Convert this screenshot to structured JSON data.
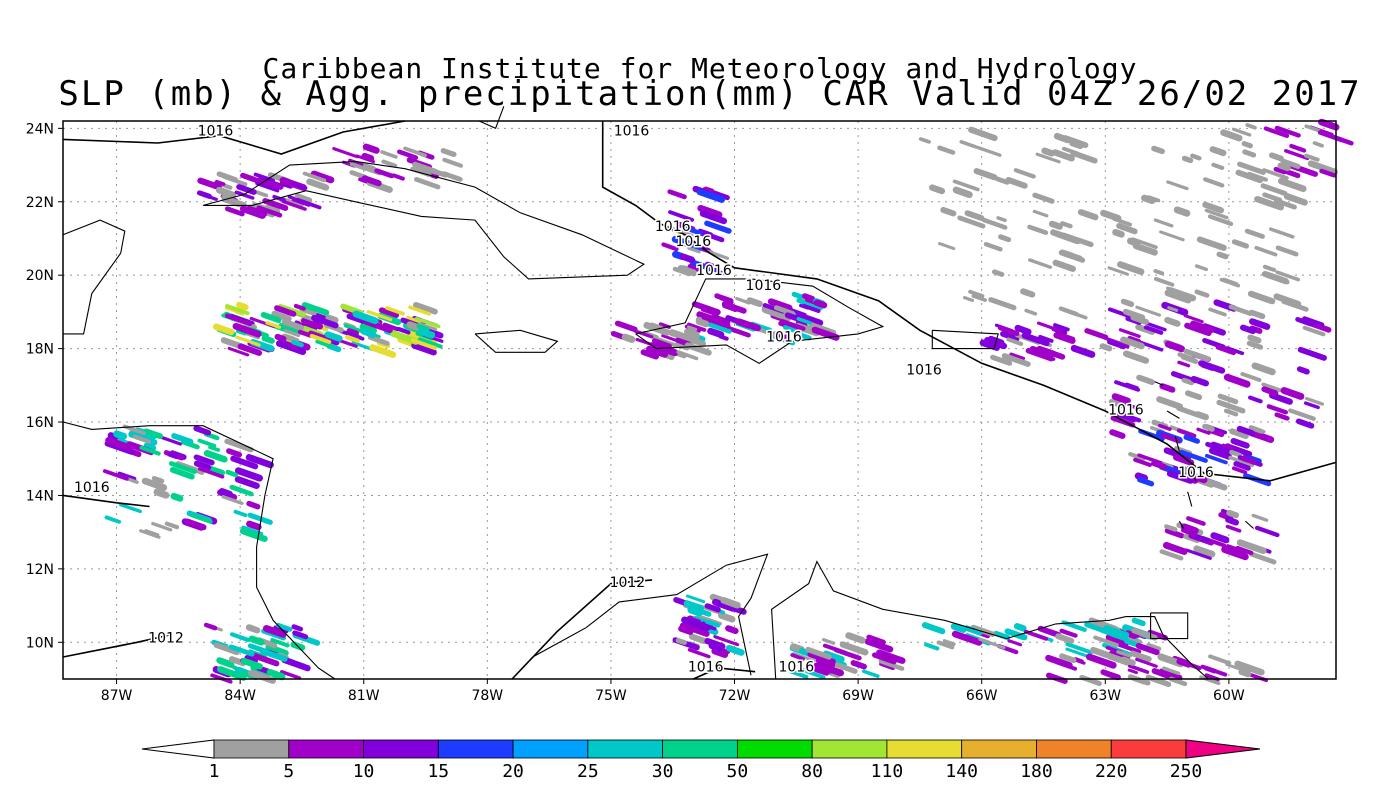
{
  "title_line1": "Caribbean Institute for Meteorology and Hydrology",
  "title_line2": "SLP (mb) & Agg. precipitation(mm) CAR Valid 04Z 26/02 2017",
  "axes": {
    "lat_labels": [
      "24N",
      "22N",
      "20N",
      "18N",
      "16N",
      "14N",
      "12N",
      "10N"
    ],
    "lat_values": [
      24,
      22,
      20,
      18,
      16,
      14,
      12,
      10
    ],
    "lon_labels": [
      "87W",
      "84W",
      "81W",
      "78W",
      "75W",
      "72W",
      "69W",
      "66W",
      "63W",
      "60W"
    ],
    "lon_values": [
      -87,
      -84,
      -81,
      -78,
      -75,
      -72,
      -69,
      -66,
      -63,
      -60
    ],
    "lat_range": [
      9,
      24.2
    ],
    "lon_range": [
      -88.3,
      -57.4
    ],
    "grid": "dotted"
  },
  "isobar_labels": [
    {
      "text": "1016",
      "lon": -84.6,
      "lat": 23.8
    },
    {
      "text": "1016",
      "lon": -74.5,
      "lat": 23.8
    },
    {
      "text": "1016",
      "lon": -73.5,
      "lat": 21.2
    },
    {
      "text": "1016",
      "lon": -73.0,
      "lat": 20.8
    },
    {
      "text": "1016",
      "lon": -72.5,
      "lat": 20.0
    },
    {
      "text": "1016",
      "lon": -71.3,
      "lat": 19.6
    },
    {
      "text": "1016",
      "lon": -70.8,
      "lat": 18.2
    },
    {
      "text": "1016",
      "lon": -67.4,
      "lat": 17.3
    },
    {
      "text": "1016",
      "lon": -62.5,
      "lat": 16.2
    },
    {
      "text": "1016",
      "lon": -87.6,
      "lat": 14.1
    },
    {
      "text": "1016",
      "lon": -60.8,
      "lat": 14.5
    },
    {
      "text": "1012",
      "lon": -85.8,
      "lat": 10.0
    },
    {
      "text": "1012",
      "lon": -74.6,
      "lat": 11.5
    },
    {
      "text": "1016",
      "lon": -72.7,
      "lat": 9.2
    },
    {
      "text": "1016",
      "lon": -70.5,
      "lat": 9.2
    }
  ],
  "colorbar": {
    "labels": [
      "1",
      "5",
      "10",
      "15",
      "20",
      "25",
      "30",
      "50",
      "80",
      "110",
      "140",
      "180",
      "220",
      "250"
    ],
    "colors": [
      "#a0a0a0",
      "#a000c8",
      "#8200dc",
      "#1e3cff",
      "#00a0ff",
      "#00c8c8",
      "#00d28c",
      "#00dc00",
      "#a0e632",
      "#e6dc32",
      "#e6af2d",
      "#f08228",
      "#fa3c3c",
      "#f00082"
    ],
    "low_color": "#ffffff"
  },
  "colors": {
    "gray": "#a0a0a0",
    "purple": "#a000c8",
    "violet": "#8200dc",
    "blue": "#1e3cff",
    "teal": "#00c8c8",
    "green": "#00d28c",
    "lime": "#a0e632",
    "yellow": "#e6dc32"
  }
}
